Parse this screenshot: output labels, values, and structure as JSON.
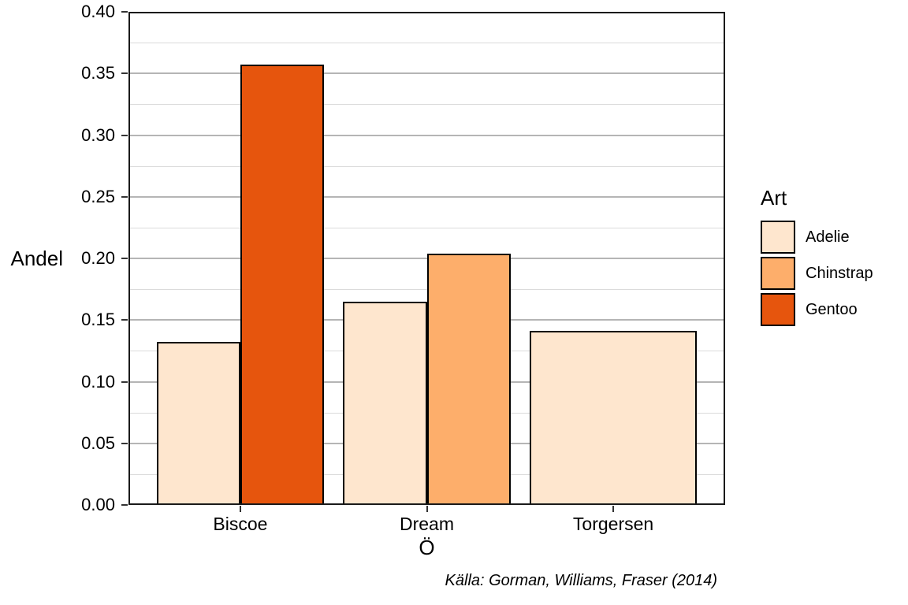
{
  "chart_data": {
    "type": "bar",
    "title": "",
    "xlabel": "Ö",
    "ylabel": "Andel",
    "caption": "Källa: Gorman, Williams, Fraser (2014)",
    "categories": [
      "Biscoe",
      "Dream",
      "Torgersen"
    ],
    "series": [
      {
        "name": "Adelie",
        "color": "#FEE6CE",
        "values": [
          0.132,
          0.165,
          0.141
        ]
      },
      {
        "name": "Chinstrap",
        "color": "#FDAE6B",
        "values": [
          null,
          0.204,
          null
        ]
      },
      {
        "name": "Gentoo",
        "color": "#E6550D",
        "values": [
          0.357,
          null,
          null
        ]
      }
    ],
    "legend": {
      "title": "Art",
      "position": "right"
    },
    "ylim": [
      0,
      0.4
    ],
    "ytick_step": 0.05,
    "yminor_step": 0.025,
    "ytick_labels": [
      "0.00",
      "0.05",
      "0.10",
      "0.15",
      "0.20",
      "0.25",
      "0.30",
      "0.35",
      "0.40"
    ],
    "bar_group_width": 0.9,
    "grid": true,
    "style": {
      "bar_border": "#000000",
      "panel_border": "#1A1A1A",
      "grid_major": "#B5B5B5",
      "grid_minor": "#DBDBDB",
      "tick_color": "#333333",
      "text_color": "#000000",
      "background": "#FFFFFF"
    }
  }
}
